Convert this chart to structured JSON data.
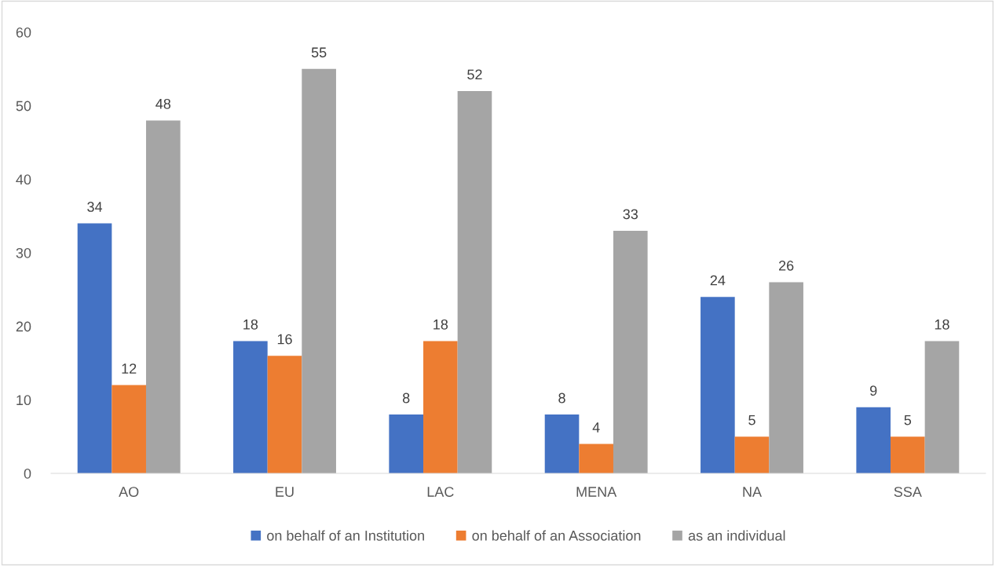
{
  "chart_data": {
    "type": "bar",
    "categories": [
      "AO",
      "EU",
      "LAC",
      "MENA",
      "NA",
      "SSA"
    ],
    "series": [
      {
        "name": "on behalf of an Institution",
        "color": "#4472c4",
        "values": [
          34,
          18,
          8,
          8,
          24,
          9
        ]
      },
      {
        "name": "on behalf of an Association",
        "color": "#ed7d31",
        "values": [
          12,
          16,
          18,
          4,
          5,
          5
        ]
      },
      {
        "name": "as an individual",
        "color": "#a5a5a5",
        "values": [
          48,
          55,
          52,
          33,
          26,
          18
        ]
      }
    ],
    "ylim": [
      0,
      60
    ],
    "yticks": [
      0,
      10,
      20,
      30,
      40,
      50,
      60
    ],
    "data_labels": true,
    "grid": false,
    "legend": "bottom"
  }
}
